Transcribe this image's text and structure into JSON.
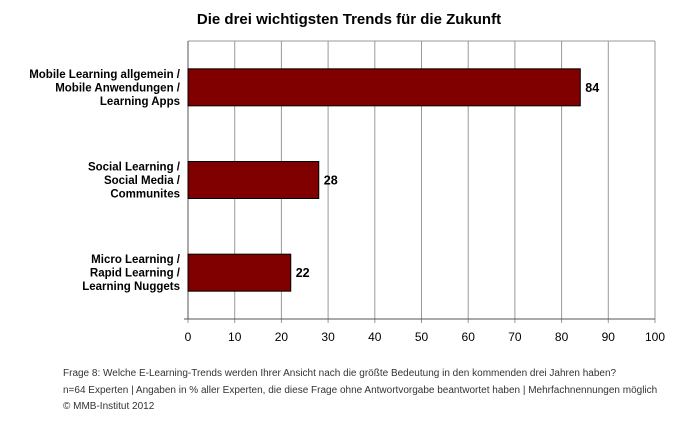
{
  "chart_data": {
    "type": "bar",
    "orientation": "horizontal",
    "title": "Die drei wichtigsten Trends für die Zukunft",
    "categories": [
      [
        "Mobile Learning allgemein /",
        "Mobile Anwendungen /",
        "Learning Apps"
      ],
      [
        "Social Learning /",
        "Social Media /",
        "Communites"
      ],
      [
        "Micro Learning /",
        "Rapid Learning /",
        "Learning Nuggets"
      ]
    ],
    "values": [
      84,
      28,
      22
    ],
    "value_labels": [
      "84",
      "28",
      "22"
    ],
    "xlim": [
      0,
      100
    ],
    "xticks": [
      0,
      10,
      20,
      30,
      40,
      50,
      60,
      70,
      80,
      90,
      100
    ],
    "xtick_labels": [
      "0",
      "10",
      "20",
      "30",
      "40",
      "50",
      "60",
      "70",
      "80",
      "90",
      "100"
    ],
    "grid": true,
    "bar_color": "#800000",
    "grid_color": "#999999"
  },
  "footnotes": {
    "question": "Frage 8: Welche E-Learning-Trends werden Ihrer Ansicht nach die größte Bedeutung in den kommenden drei Jahren haben?",
    "sample": "n=64 Experten | Angaben in % aller Experten, die diese Frage ohne Antwortvorgabe beantwortet haben | Mehrfachnennungen möglich",
    "copyright": "© MMB-Institut 2012"
  }
}
